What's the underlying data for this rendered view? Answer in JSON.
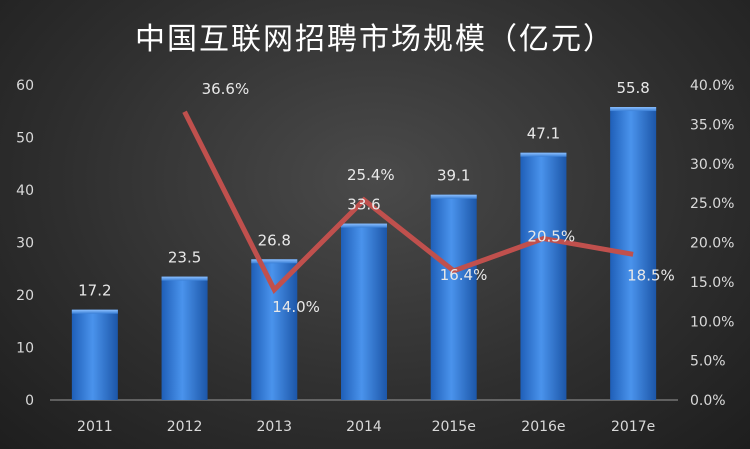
{
  "chart_data": {
    "type": "bar",
    "title": "中国互联网招聘市场规模（亿元）",
    "categories": [
      "2011",
      "2012",
      "2013",
      "2014",
      "2015e",
      "2016e",
      "2017e"
    ],
    "series": [
      {
        "type": "bar",
        "axis": "left",
        "values": [
          17.2,
          23.5,
          26.8,
          33.6,
          39.1,
          47.1,
          55.8
        ],
        "labels": [
          "17.2",
          "23.5",
          "26.8",
          "33.6",
          "39.1",
          "47.1",
          "55.8"
        ]
      },
      {
        "type": "line",
        "axis": "right",
        "values": [
          null,
          36.6,
          14.0,
          25.4,
          16.4,
          20.5,
          18.5
        ],
        "labels": [
          "",
          "36.6%",
          "14.0%",
          "25.4%",
          "16.4%",
          "20.5%",
          "18.5%"
        ]
      }
    ],
    "y_left": {
      "ylim": [
        0,
        60
      ],
      "ticks": [
        "0",
        "10",
        "20",
        "30",
        "40",
        "50",
        "60"
      ]
    },
    "y_right": {
      "ylim": [
        0,
        40
      ],
      "ticks": [
        "0.0%",
        "5.0%",
        "10.0%",
        "15.0%",
        "20.0%",
        "25.0%",
        "30.0%",
        "35.0%",
        "40.0%"
      ]
    },
    "grid": false,
    "legend": "none",
    "colors": {
      "bar": "#3a7fd6",
      "line": "#c0504d",
      "text": "#d9d9d9"
    }
  }
}
